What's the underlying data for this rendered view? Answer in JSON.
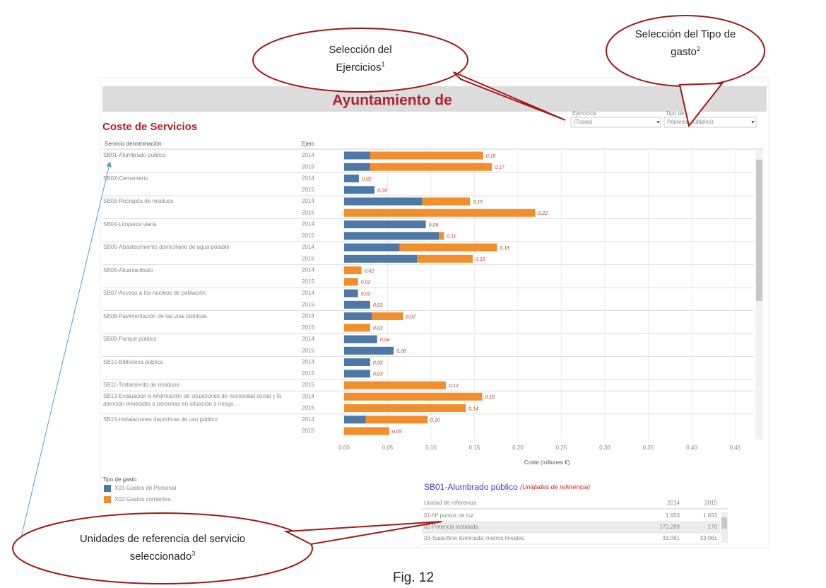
{
  "header": {
    "title": "Ayuntamiento de",
    "subtitle": "Coste de Servicios"
  },
  "filters": [
    {
      "label": "Ejercicios",
      "value": "(Todos)"
    },
    {
      "label": "Tipo de gasto",
      "value": "(Valores múltiples)"
    }
  ],
  "chart_data": {
    "type": "bar",
    "orientation": "horizontal",
    "stacked": true,
    "category_header": "Servicio denominación",
    "year_header": "Ejerc",
    "categories": [
      "SB01-Alumbrado público",
      null,
      "SB02-Cementerio",
      null,
      "SB03-Recogida de residuos",
      null,
      "SB04-Limpieza viaria",
      null,
      "SB05-Abastecimiento domiciliario de agua potable",
      null,
      "SB06-Alcantarillado",
      null,
      "SB07-Acceso a los núcleos de población",
      null,
      "SB08-Pavimentación de las vías públicas",
      null,
      "SB09-Parque público",
      null,
      "SB10-Biblioteca pública",
      null,
      "SB11-Tratamiento de residuos",
      "SB13-Evaluación e información de situaciones de necesidad social y la atención inmediata a personas en situación o riesgo ...",
      null,
      "SB15-Instalaciones deportivas de uso público",
      null
    ],
    "years": [
      2014,
      2015,
      2014,
      2015,
      2014,
      2015,
      2014,
      2015,
      2014,
      2015,
      2014,
      2015,
      2014,
      2015,
      2014,
      2015,
      2014,
      2015,
      2014,
      2015,
      2015,
      2014,
      2015,
      2014,
      2015
    ],
    "series": [
      {
        "name": "X01-Gastos de Personal",
        "color": "#4e79a7",
        "values": [
          0.03,
          0.03,
          0.017,
          0.035,
          0.09,
          null,
          0.094,
          0.109,
          0.064,
          0.084,
          null,
          null,
          0.016,
          0.03,
          0.032,
          null,
          0.038,
          0.057,
          0.03,
          0.03,
          null,
          null,
          null,
          0.025,
          null
        ]
      },
      {
        "name": "X02-Gastos corrientes",
        "color": "#f28e2b",
        "values": [
          0.13,
          0.14,
          null,
          null,
          0.055,
          0.22,
          null,
          0.006,
          0.112,
          0.064,
          0.02,
          0.016,
          null,
          null,
          0.036,
          0.03,
          null,
          null,
          null,
          null,
          0.117,
          0.159,
          0.14,
          0.071,
          0.052
        ]
      }
    ],
    "total_labels": [
      "0,16",
      "0,17",
      "0,02",
      "0,04",
      "0,15",
      "0,22",
      "0,09",
      "0,11",
      "0,18",
      "0,15",
      "0,02",
      "0,02",
      "0,02",
      "0,03",
      "0,07",
      "0,03",
      "0,04",
      "0,06",
      "0,03",
      "0,03",
      "0,12",
      "0,16",
      "0,14",
      "0,10",
      "0,05"
    ],
    "x_label": "Coste (millones €)",
    "xlim": [
      0,
      0.47
    ],
    "xticks": [
      {
        "value": 0,
        "label": "0,00"
      },
      {
        "value": 0.05,
        "label": "0,05"
      },
      {
        "value": 0.1,
        "label": "0,10"
      },
      {
        "value": 0.15,
        "label": "0,15"
      },
      {
        "value": 0.2,
        "label": "0,20"
      },
      {
        "value": 0.25,
        "label": "0,25"
      },
      {
        "value": 0.3,
        "label": "0,30"
      },
      {
        "value": 0.35,
        "label": "0,35"
      },
      {
        "value": 0.4,
        "label": "0,40"
      },
      {
        "value": 0.45,
        "label": "0,45"
      }
    ],
    "grid": true,
    "legend_title": "Tipo de gasto"
  },
  "detail_table": {
    "title": "SB01-Alumbrado público",
    "subtitle": "(Unidades de referencia)",
    "columns": [
      "Unidad de referencia",
      "2014",
      "2015"
    ],
    "rows": [
      [
        "01-Nº puntos de luz",
        "1.653",
        "1.653"
      ],
      [
        "02-Potencia instalada",
        "170.289",
        "170"
      ],
      [
        "03-Superficie iluminada: metros lineales",
        "33.061",
        "33.061"
      ]
    ]
  },
  "callouts": [
    {
      "text": "Selección del Ejercicios",
      "note": "1"
    },
    {
      "text": "Selección del Tipo de gasto",
      "note": "2"
    },
    {
      "text": "Unidades de referencia del servicio seleccionado",
      "note": "3"
    }
  ],
  "caption": "Fig. 12"
}
